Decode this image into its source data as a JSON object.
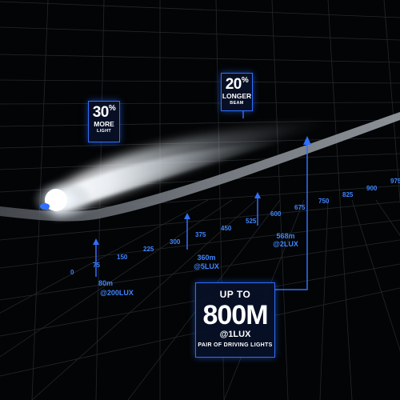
{
  "badges": {
    "more_light": {
      "value": "30",
      "pct": "%",
      "line1": "MORE",
      "line2": "LIGHT"
    },
    "longer_beam": {
      "value": "20",
      "pct": "%",
      "line1": "LONGER",
      "line2": "BEAM"
    },
    "distance": {
      "line1": "UP TO",
      "value": "800M",
      "lux": "@1LUX",
      "caption": "PAIR OF DRIVING LIGHTS"
    }
  },
  "scale": {
    "ticks": [
      "0",
      "75",
      "150",
      "225",
      "300",
      "375",
      "450",
      "525",
      "600",
      "675",
      "750",
      "825",
      "900",
      "975"
    ],
    "markers": [
      {
        "dist": "80m",
        "lux": "@200LUX"
      },
      {
        "dist": "360m",
        "lux": "@5LUX"
      },
      {
        "dist": "568m",
        "lux": "@2LUX"
      }
    ]
  },
  "colors": {
    "accent": "#2f6fff",
    "label": "#3f86ff",
    "background": "#030405"
  }
}
